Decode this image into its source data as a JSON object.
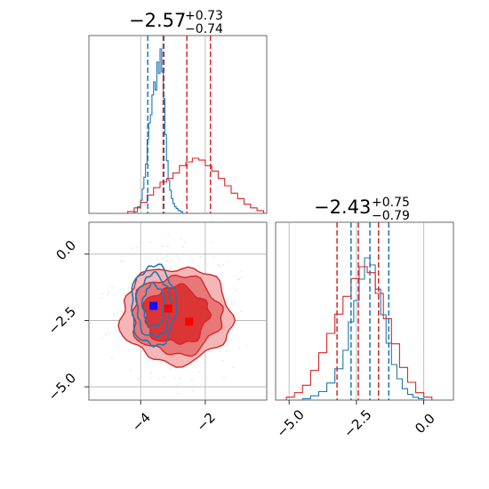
{
  "chart_data": [
    {
      "type": "histogram",
      "panel": "top-left",
      "title": {
        "value": "−2.57",
        "upper": "+0.73",
        "lower": "−0.74"
      },
      "xlim": [
        -5.6,
        -0.1
      ],
      "grid": true,
      "series": [
        {
          "name": "",
          "color": "#1f77b4",
          "x": [
            -4.2,
            -4.1,
            -4.0,
            -3.95,
            -3.9,
            -3.85,
            -3.8,
            -3.75,
            -3.7,
            -3.65,
            -3.6,
            -3.55,
            -3.5,
            -3.45,
            -3.4,
            -3.35,
            -3.3,
            -3.25,
            -3.2,
            -3.15,
            -3.1,
            -3.05,
            -3.0,
            -2.95,
            -2.9,
            -2.85,
            -2.8,
            -2.75,
            -2.7
          ],
          "y": [
            0.01,
            0.04,
            0.08,
            0.15,
            0.22,
            0.3,
            0.45,
            0.55,
            0.6,
            0.72,
            0.8,
            0.75,
            0.92,
            0.85,
            1.0,
            0.86,
            0.7,
            0.48,
            0.32,
            0.2,
            0.14,
            0.09,
            0.06,
            0.04,
            0.03,
            0.02,
            0.015,
            0.01,
            0.0
          ],
          "quantile_lines": [
            -3.78,
            -3.3,
            -3.28
          ]
        },
        {
          "name": "",
          "color": "#d62728",
          "x": [
            -4.6,
            -4.4,
            -4.2,
            -4.0,
            -3.8,
            -3.6,
            -3.4,
            -3.2,
            -3.0,
            -2.8,
            -2.6,
            -2.4,
            -2.2,
            -2.0,
            -1.8,
            -1.6,
            -1.4,
            -1.2,
            -1.0,
            -0.8,
            -0.6,
            -0.4,
            -0.2
          ],
          "y": [
            0.0,
            0.01,
            0.03,
            0.06,
            0.1,
            0.14,
            0.17,
            0.19,
            0.22,
            0.26,
            0.28,
            0.3,
            0.29,
            0.26,
            0.23,
            0.19,
            0.15,
            0.11,
            0.08,
            0.05,
            0.03,
            0.015,
            0.0
          ],
          "quantile_lines": [
            -3.3,
            -2.57,
            -1.84
          ]
        }
      ],
      "ticks": []
    },
    {
      "type": "contour",
      "panel": "bottom-left",
      "xlim": [
        -5.6,
        -0.1
      ],
      "ylim": [
        -5.5,
        1.2
      ],
      "grid": true,
      "xticks": [
        -4,
        -2
      ],
      "yticks": [
        0.0,
        -2.5,
        -5.0
      ],
      "xtick_labels": [
        "−4",
        "−2"
      ],
      "ytick_labels": [
        "0.0",
        "−2.5",
        "−5.0"
      ],
      "series": [
        {
          "name": "",
          "color": "#1f77b4",
          "center": [
            -3.6,
            -1.95
          ],
          "levels_sigma": [
            0.3,
            0.55,
            0.8
          ]
        },
        {
          "name": "",
          "color": "#d62728",
          "center": [
            -2.9,
            -2.3
          ],
          "levels_sigma": [
            0.5,
            0.9,
            1.3
          ]
        }
      ],
      "markers": [
        {
          "color": "#1010ff",
          "x": -3.6,
          "y": -1.95
        },
        {
          "color": "#ff0000",
          "x": -3.15,
          "y": -2.05
        },
        {
          "color": "#ff0000",
          "x": -2.5,
          "y": -2.55
        }
      ]
    },
    {
      "type": "histogram",
      "panel": "bottom-right",
      "title": {
        "value": "−2.43",
        "upper": "+0.75",
        "lower": "−0.79"
      },
      "xlim": [
        -5.5,
        1.1
      ],
      "grid": true,
      "xticks": [
        -5.0,
        -2.5,
        0.0
      ],
      "xtick_labels": [
        "−5.0",
        "−2.5",
        "0.0"
      ],
      "series": [
        {
          "name": "",
          "color": "#1f77b4",
          "x": [
            -4.8,
            -4.5,
            -4.2,
            -3.9,
            -3.6,
            -3.3,
            -3.0,
            -2.8,
            -2.6,
            -2.4,
            -2.2,
            -2.0,
            -1.8,
            -1.6,
            -1.4,
            -1.2,
            -1.0,
            -0.8,
            -0.6,
            -0.4,
            -0.2,
            0.0
          ],
          "y": [
            0.0,
            0.01,
            0.03,
            0.06,
            0.12,
            0.22,
            0.35,
            0.55,
            0.7,
            0.85,
            1.0,
            0.95,
            0.78,
            0.6,
            0.4,
            0.25,
            0.15,
            0.08,
            0.04,
            0.02,
            0.01,
            0.0
          ],
          "quantile_lines": [
            -2.7,
            -2.0,
            -1.3
          ]
        },
        {
          "name": "",
          "color": "#d62728",
          "x": [
            -5.4,
            -5.1,
            -4.8,
            -4.5,
            -4.2,
            -3.9,
            -3.6,
            -3.3,
            -3.0,
            -2.7,
            -2.4,
            -2.1,
            -1.8,
            -1.5,
            -1.2,
            -0.9,
            -0.6,
            -0.3,
            0.0,
            0.3
          ],
          "y": [
            0.0,
            0.02,
            0.05,
            0.1,
            0.2,
            0.32,
            0.45,
            0.58,
            0.7,
            0.82,
            0.9,
            0.86,
            0.72,
            0.55,
            0.38,
            0.22,
            0.12,
            0.05,
            0.02,
            0.0
          ],
          "quantile_lines": [
            -3.22,
            -2.43,
            -1.68
          ]
        }
      ]
    }
  ]
}
